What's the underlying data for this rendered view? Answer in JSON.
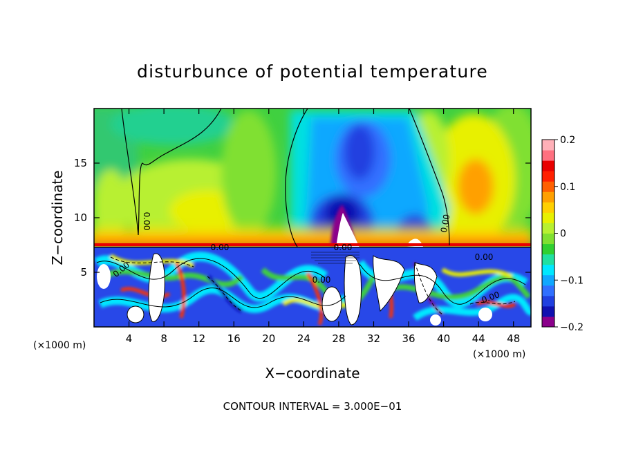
{
  "chart_data": {
    "type": "heatmap",
    "title": "disturbunce of potential temperature",
    "xlabel": "X−coordinate",
    "ylabel": "Z−coordinate",
    "x_unit": "(×1000 m)",
    "z_unit": "(×1000 m)",
    "footer": "CONTOUR INTERVAL = 3.000E−01",
    "xlim": [
      0,
      50
    ],
    "ylim": [
      0,
      20
    ],
    "x_ticks": [
      4,
      8,
      12,
      16,
      20,
      24,
      28,
      32,
      36,
      40,
      44,
      48
    ],
    "x_tick_labels": [
      "4",
      "8",
      "12",
      "16",
      "20",
      "24",
      "28",
      "32",
      "36",
      "40",
      "44",
      "48"
    ],
    "y_ticks": [
      5,
      10,
      15
    ],
    "y_tick_labels": [
      "5",
      "10",
      "15"
    ],
    "colorbar": {
      "range": [
        -0.2,
        0.2
      ],
      "ticks": [
        0.2,
        0.1,
        0,
        -0.1,
        -0.2
      ],
      "tick_labels": [
        "0.2",
        "0.1",
        "0",
        "−0.1",
        "−0.2"
      ],
      "colors": [
        "#8b008b",
        "#1010b0",
        "#2040e0",
        "#3070ff",
        "#10a8ff",
        "#00e8ff",
        "#20e0a0",
        "#30d030",
        "#80e030",
        "#b8f030",
        "#e8f000",
        "#ffd000",
        "#ffa000",
        "#ff6000",
        "#ff2000",
        "#e80000",
        "#ff7080",
        "#ffb0b8"
      ]
    },
    "contour_labels": [
      "0.00",
      "0.00",
      "0.00",
      "0.00",
      "0.00",
      "0.00",
      "0.00",
      "0.00"
    ],
    "features": [
      {
        "x": 30,
        "z": 13,
        "value": -0.12
      },
      {
        "x": 29.5,
        "z": 9,
        "value": -0.2
      },
      {
        "x": 37,
        "z": 9,
        "value": -0.14
      },
      {
        "x": 44.5,
        "z": 13,
        "value": 0.1
      },
      {
        "x": 10,
        "z": 11,
        "value": 0.07
      },
      {
        "x": 2,
        "z": 14,
        "value": 0.03
      }
    ]
  }
}
